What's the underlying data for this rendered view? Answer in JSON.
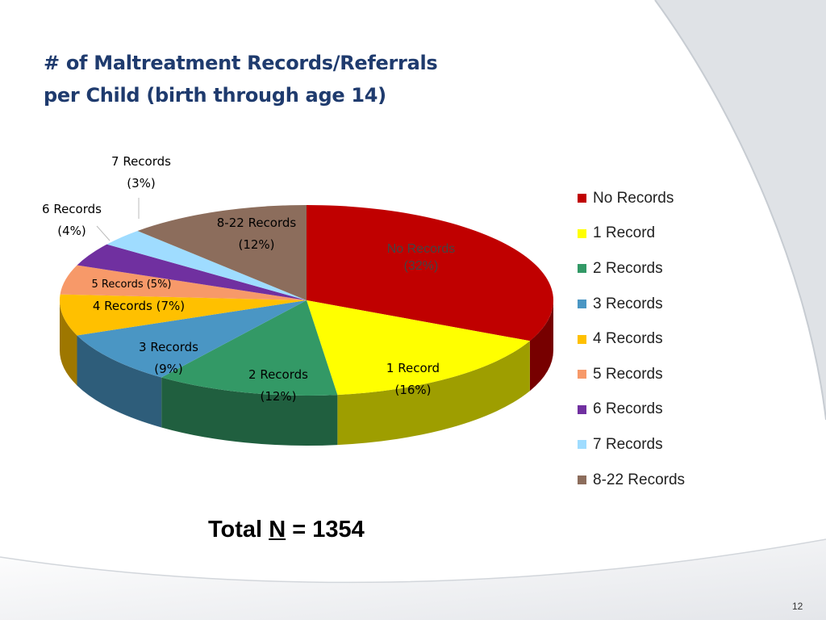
{
  "slide": {
    "title_line1": "# of Maltreatment Records/Referrals",
    "title_line2": "per Child (birth through age 14)",
    "total_prefix": "Total ",
    "total_n": "N",
    "total_suffix": " = 1354",
    "page_number": "12"
  },
  "chart_data": {
    "type": "pie",
    "categories": [
      "No Records",
      "1 Record",
      "2 Records",
      "3 Records",
      "4 Records",
      "5 Records",
      "6 Records",
      "7 Records",
      "8-22 Records"
    ],
    "values": [
      32,
      16,
      12,
      9,
      7,
      5,
      4,
      3,
      12
    ],
    "colors": [
      "#c00000",
      "#ffff00",
      "#339966",
      "#4a96c4",
      "#ffc000",
      "#f79969",
      "#7030a0",
      "#9fdcff",
      "#8c6d5c"
    ],
    "data_labels": [
      [
        "No Records",
        "(32%)"
      ],
      [
        "1 Record",
        "(16%)"
      ],
      [
        "2 Records",
        "(12%)"
      ],
      [
        "3 Records",
        "(9%)"
      ],
      [
        "4 Records (7%)"
      ],
      [
        "5 Records (5%)"
      ],
      [
        "6 Records",
        "(4%)"
      ],
      [
        "7 Records",
        "(3%)"
      ],
      [
        "8-22 Records",
        "(12%)"
      ]
    ],
    "legend": "right"
  }
}
